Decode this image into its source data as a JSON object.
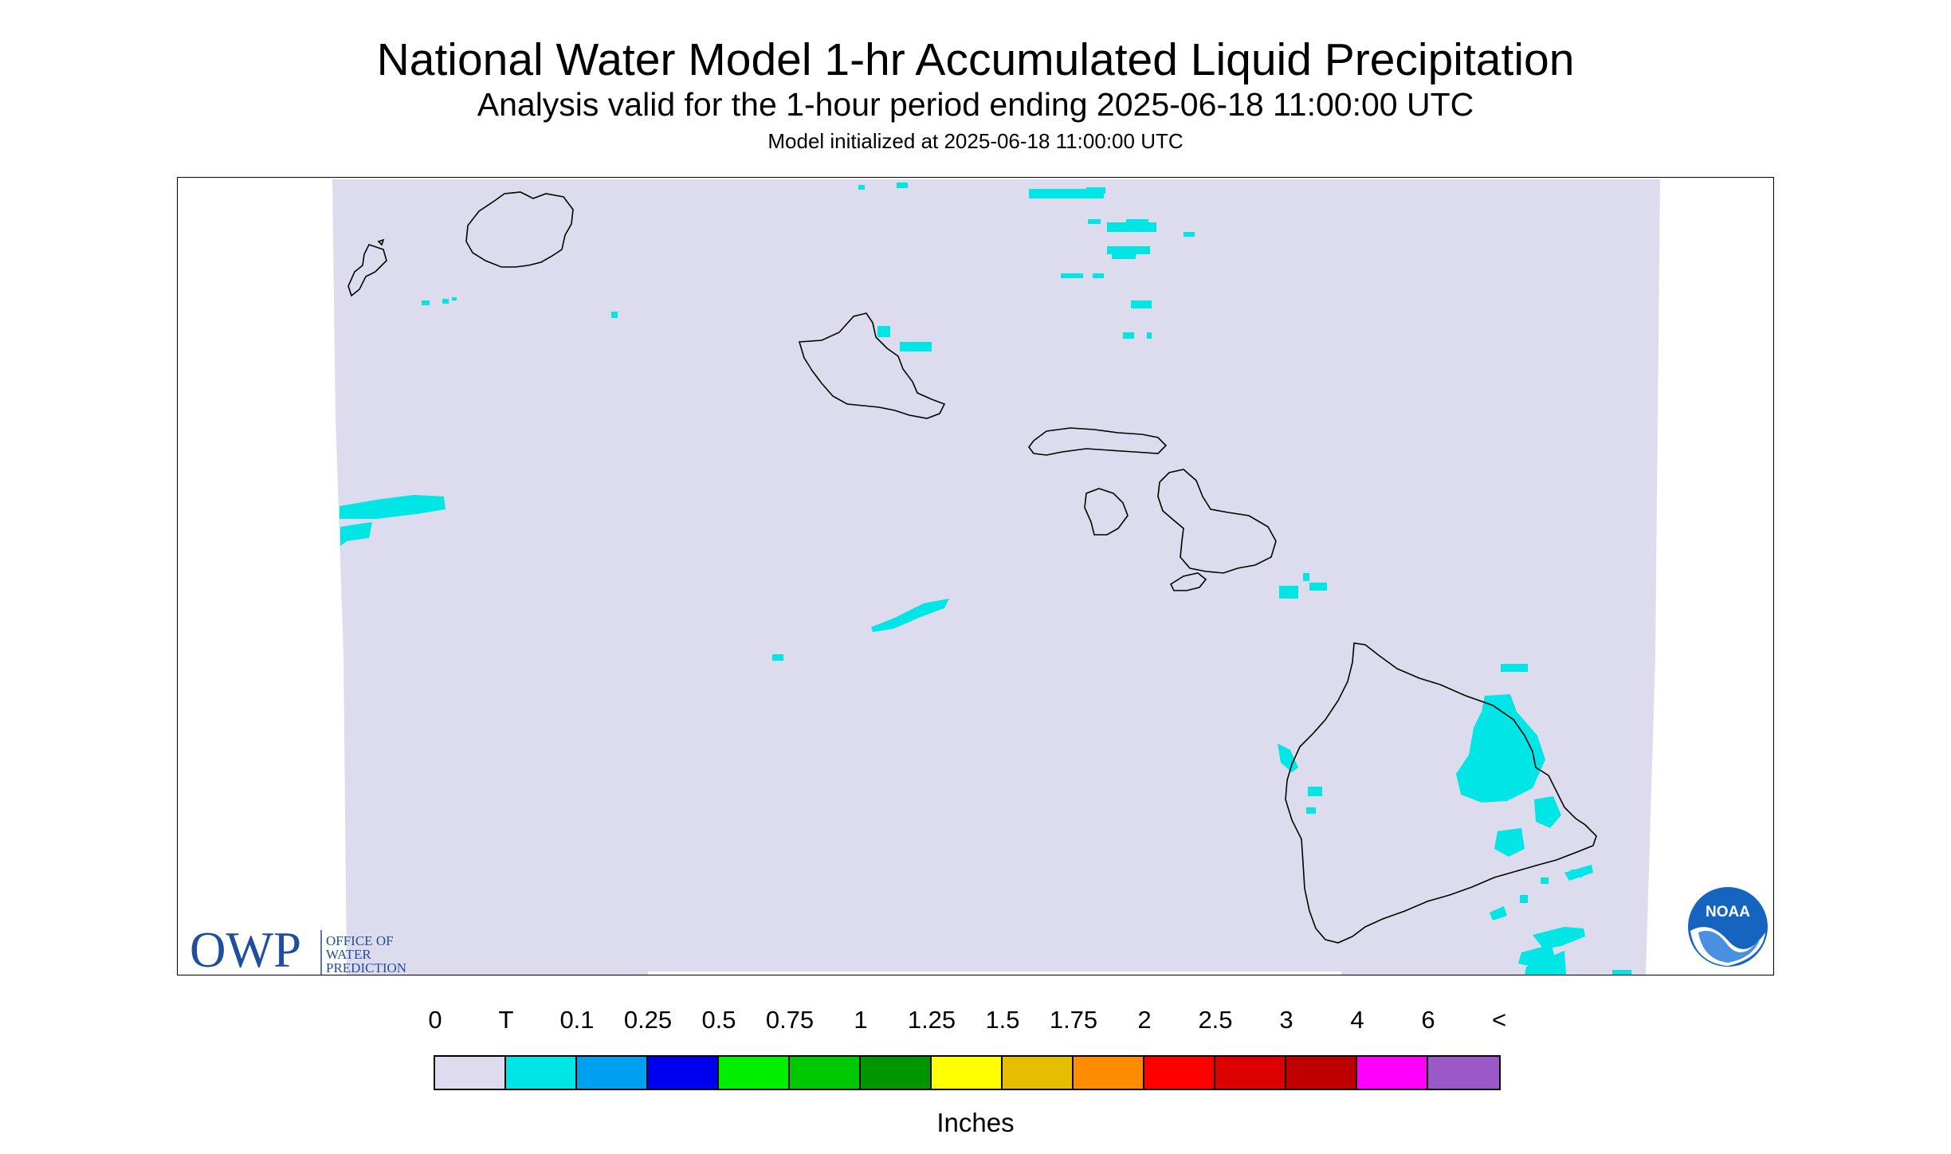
{
  "title": "National Water Model 1-hr Accumulated Liquid Precipitation",
  "subtitle": "Analysis valid for the 1-hour period ending 2025-06-18 11:00:00 UTC",
  "init_text": "Model initialized at 2025-06-18 11:00:00 UTC",
  "colors": {
    "domain_fill": "#dcdcee",
    "precip_trace": "#00e6e6",
    "coastline": "#000000",
    "owp_blue": "#1f4e9c",
    "noaa_blue": "#1565c0"
  },
  "logos": {
    "owp": {
      "big": "OWP",
      "line1": "OFFICE OF",
      "line2": "WATER",
      "line3": "PREDICTION"
    },
    "noaa": {
      "text": "NOAA"
    }
  },
  "legend": {
    "labels": [
      "0",
      "T",
      "0.1",
      "0.25",
      "0.5",
      "0.75",
      "1",
      "1.25",
      "1.5",
      "1.75",
      "2",
      "2.5",
      "3",
      "4",
      "6",
      "<"
    ],
    "colors": [
      "#dcdcee",
      "#00e6e6",
      "#00a0f0",
      "#0000f0",
      "#00f000",
      "#00c800",
      "#009600",
      "#ffff00",
      "#e6be00",
      "#ff8c00",
      "#ff0000",
      "#dc0000",
      "#be0000",
      "#ff00ff",
      "#9b59c8"
    ],
    "units": "Inches"
  }
}
